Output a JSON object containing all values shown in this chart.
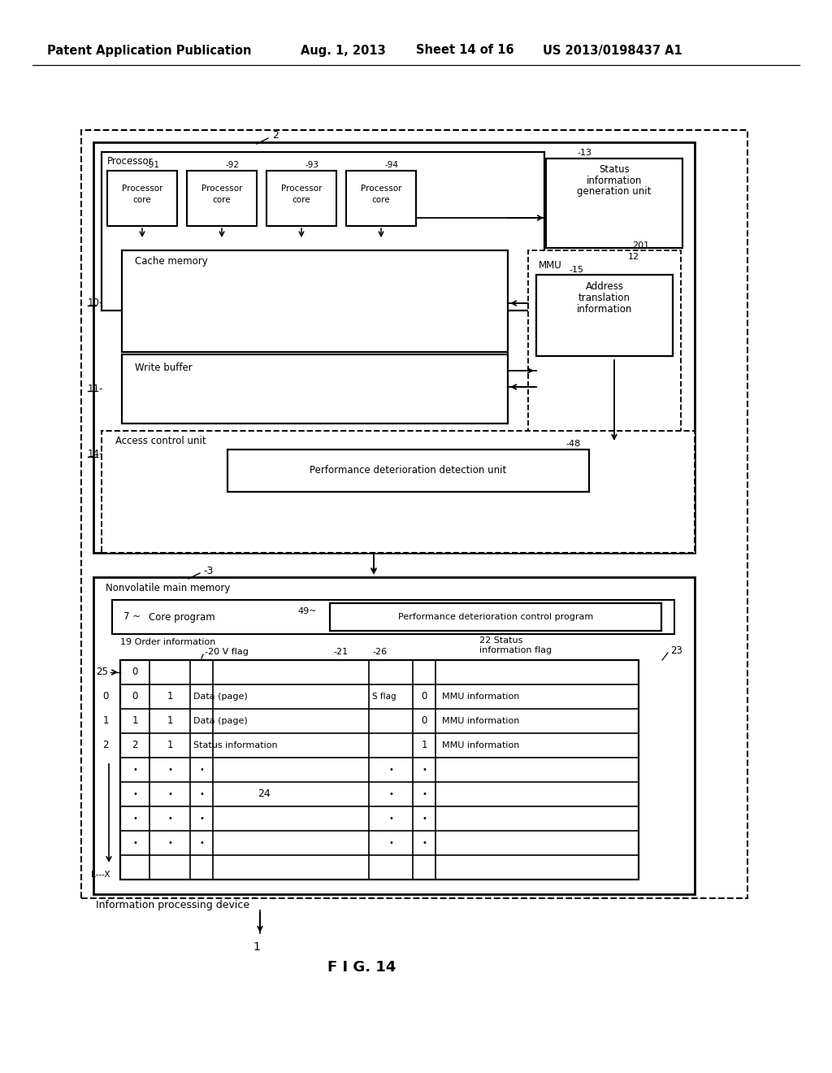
{
  "bg_color": "#ffffff",
  "header_text": "Patent Application Publication",
  "header_date": "Aug. 1, 2013",
  "header_sheet": "Sheet 14 of 16",
  "header_patent": "US 2013/0198437 A1",
  "fig_label": "FIG. 14"
}
